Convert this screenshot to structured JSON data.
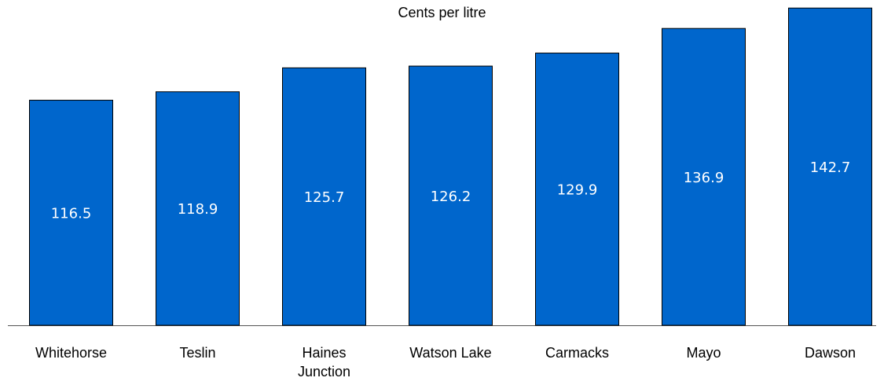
{
  "chart_data": {
    "type": "bar",
    "title": "Cents per litre",
    "xlabel": "",
    "ylabel": "",
    "categories": [
      "Whitehorse",
      "Teslin",
      "Haines Junction",
      "Watson Lake",
      "Carmacks",
      "Mayo",
      "Dawson"
    ],
    "category_lines": [
      [
        "Whitehorse"
      ],
      [
        "Teslin"
      ],
      [
        "Haines",
        "Junction"
      ],
      [
        "Watson Lake"
      ],
      [
        "Carmacks"
      ],
      [
        "Mayo"
      ],
      [
        "Dawson"
      ]
    ],
    "values": [
      116.5,
      118.9,
      125.7,
      126.2,
      129.9,
      136.9,
      142.7
    ],
    "value_labels": [
      "116.5",
      "118.9",
      "125.7",
      "126.2",
      "129.9",
      "136.9",
      "142.7"
    ],
    "ylim": [
      0,
      150
    ],
    "grid": false,
    "legend": "none",
    "bar_color": "#0066CC",
    "bar_border_color": "#000000",
    "axis_color": "#555555",
    "value_label_color": "#FFFFFF",
    "category_label_color": "#000000"
  }
}
